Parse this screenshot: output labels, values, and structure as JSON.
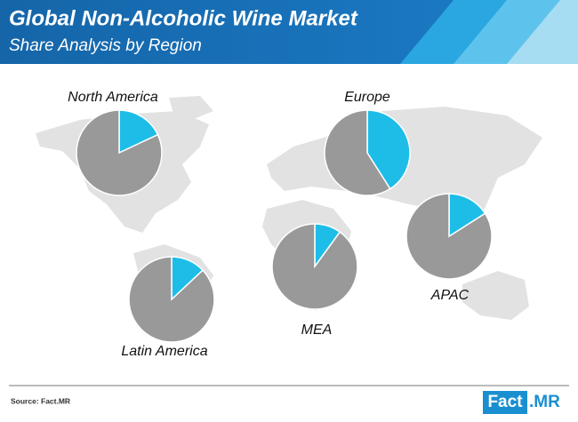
{
  "header": {
    "title": "Global Non-Alcoholic Wine Market",
    "subtitle": "Share Analysis by Region"
  },
  "footer": {
    "source": "Source: Fact.MR",
    "logo_box": "Fact",
    "logo_suffix": ".MR"
  },
  "chart_data": [
    {
      "type": "pie",
      "title": "North America",
      "values": [
        18,
        82
      ],
      "colors": [
        "#1ebde8",
        "#999999"
      ]
    },
    {
      "type": "pie",
      "title": "Europe",
      "values": [
        41,
        59
      ],
      "colors": [
        "#1ebde8",
        "#999999"
      ]
    },
    {
      "type": "pie",
      "title": "Latin America",
      "values": [
        13,
        87
      ],
      "colors": [
        "#1ebde8",
        "#999999"
      ]
    },
    {
      "type": "pie",
      "title": "MEA",
      "values": [
        10,
        90
      ],
      "colors": [
        "#1ebde8",
        "#999999"
      ]
    },
    {
      "type": "pie",
      "title": "APAC",
      "values": [
        16,
        84
      ],
      "colors": [
        "#1ebde8",
        "#999999"
      ]
    }
  ]
}
